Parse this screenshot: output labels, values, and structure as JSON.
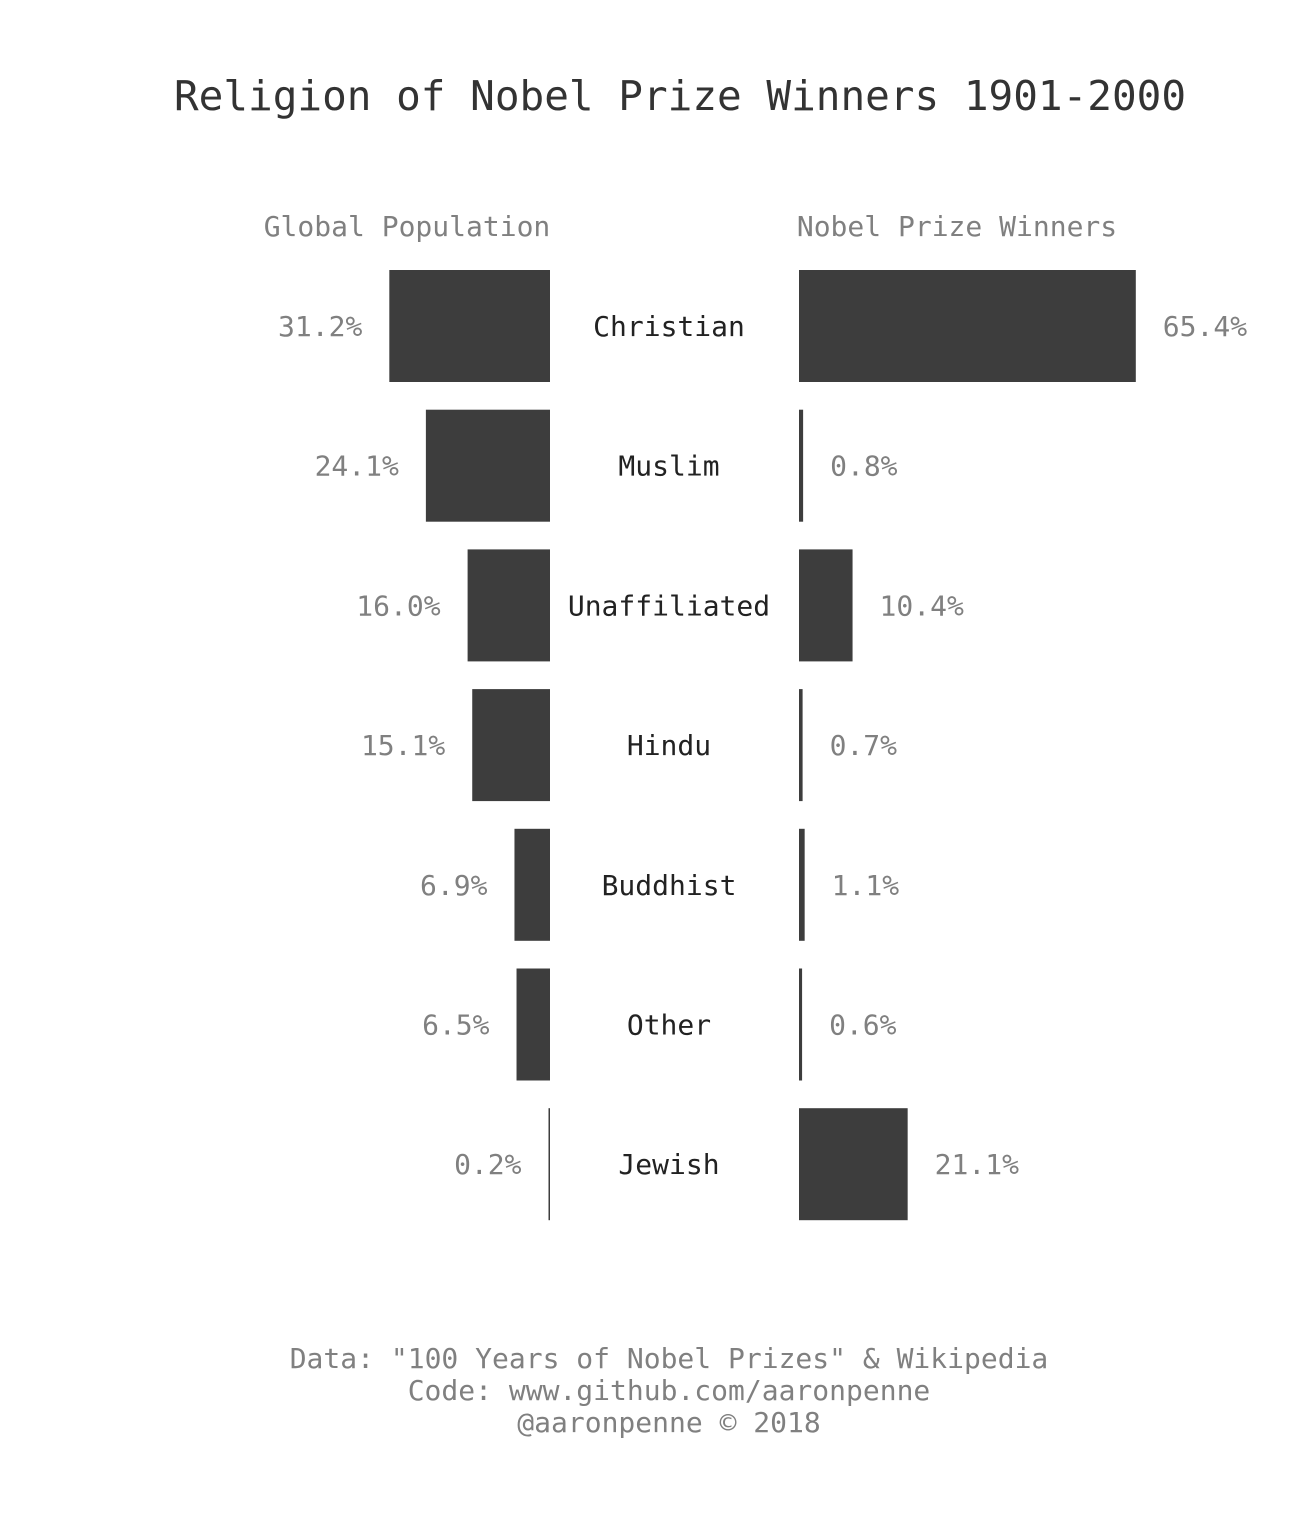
{
  "chart_data": {
    "type": "bar",
    "title": "Religion of Nobel Prize Winners 1901-2000",
    "categories": [
      "Christian",
      "Muslim",
      "Unaffiliated",
      "Hindu",
      "Buddhist",
      "Other",
      "Jewish"
    ],
    "series": [
      {
        "name": "Global Population",
        "values": [
          31.2,
          24.1,
          16.0,
          15.1,
          6.9,
          6.5,
          0.2
        ],
        "labels": [
          "31.2%",
          "24.1%",
          "16.0%",
          "15.1%",
          "6.9%",
          "6.5%",
          "0.2%"
        ]
      },
      {
        "name": "Nobel Prize Winners",
        "values": [
          65.4,
          0.8,
          10.4,
          0.7,
          1.1,
          0.6,
          21.1
        ],
        "labels": [
          "65.4%",
          "0.8%",
          "10.4%",
          "0.7%",
          "1.1%",
          "0.6%",
          "21.1%"
        ]
      }
    ],
    "orientation": "horizontal, mirrored (left panel grows leftward, right panel grows rightward)",
    "grid": false,
    "bar_color": "#3d3d3d"
  },
  "footer": {
    "line1": "Data: \"100 Years of Nobel Prizes\" & Wikipedia",
    "line2": "Code: www.github.com/aaronpenne",
    "line3": "@aaronpenne © 2018"
  },
  "colors": {
    "bar": "#3d3d3d",
    "title": "#333333",
    "muted_text": "#808080",
    "category_text": "#222222"
  }
}
